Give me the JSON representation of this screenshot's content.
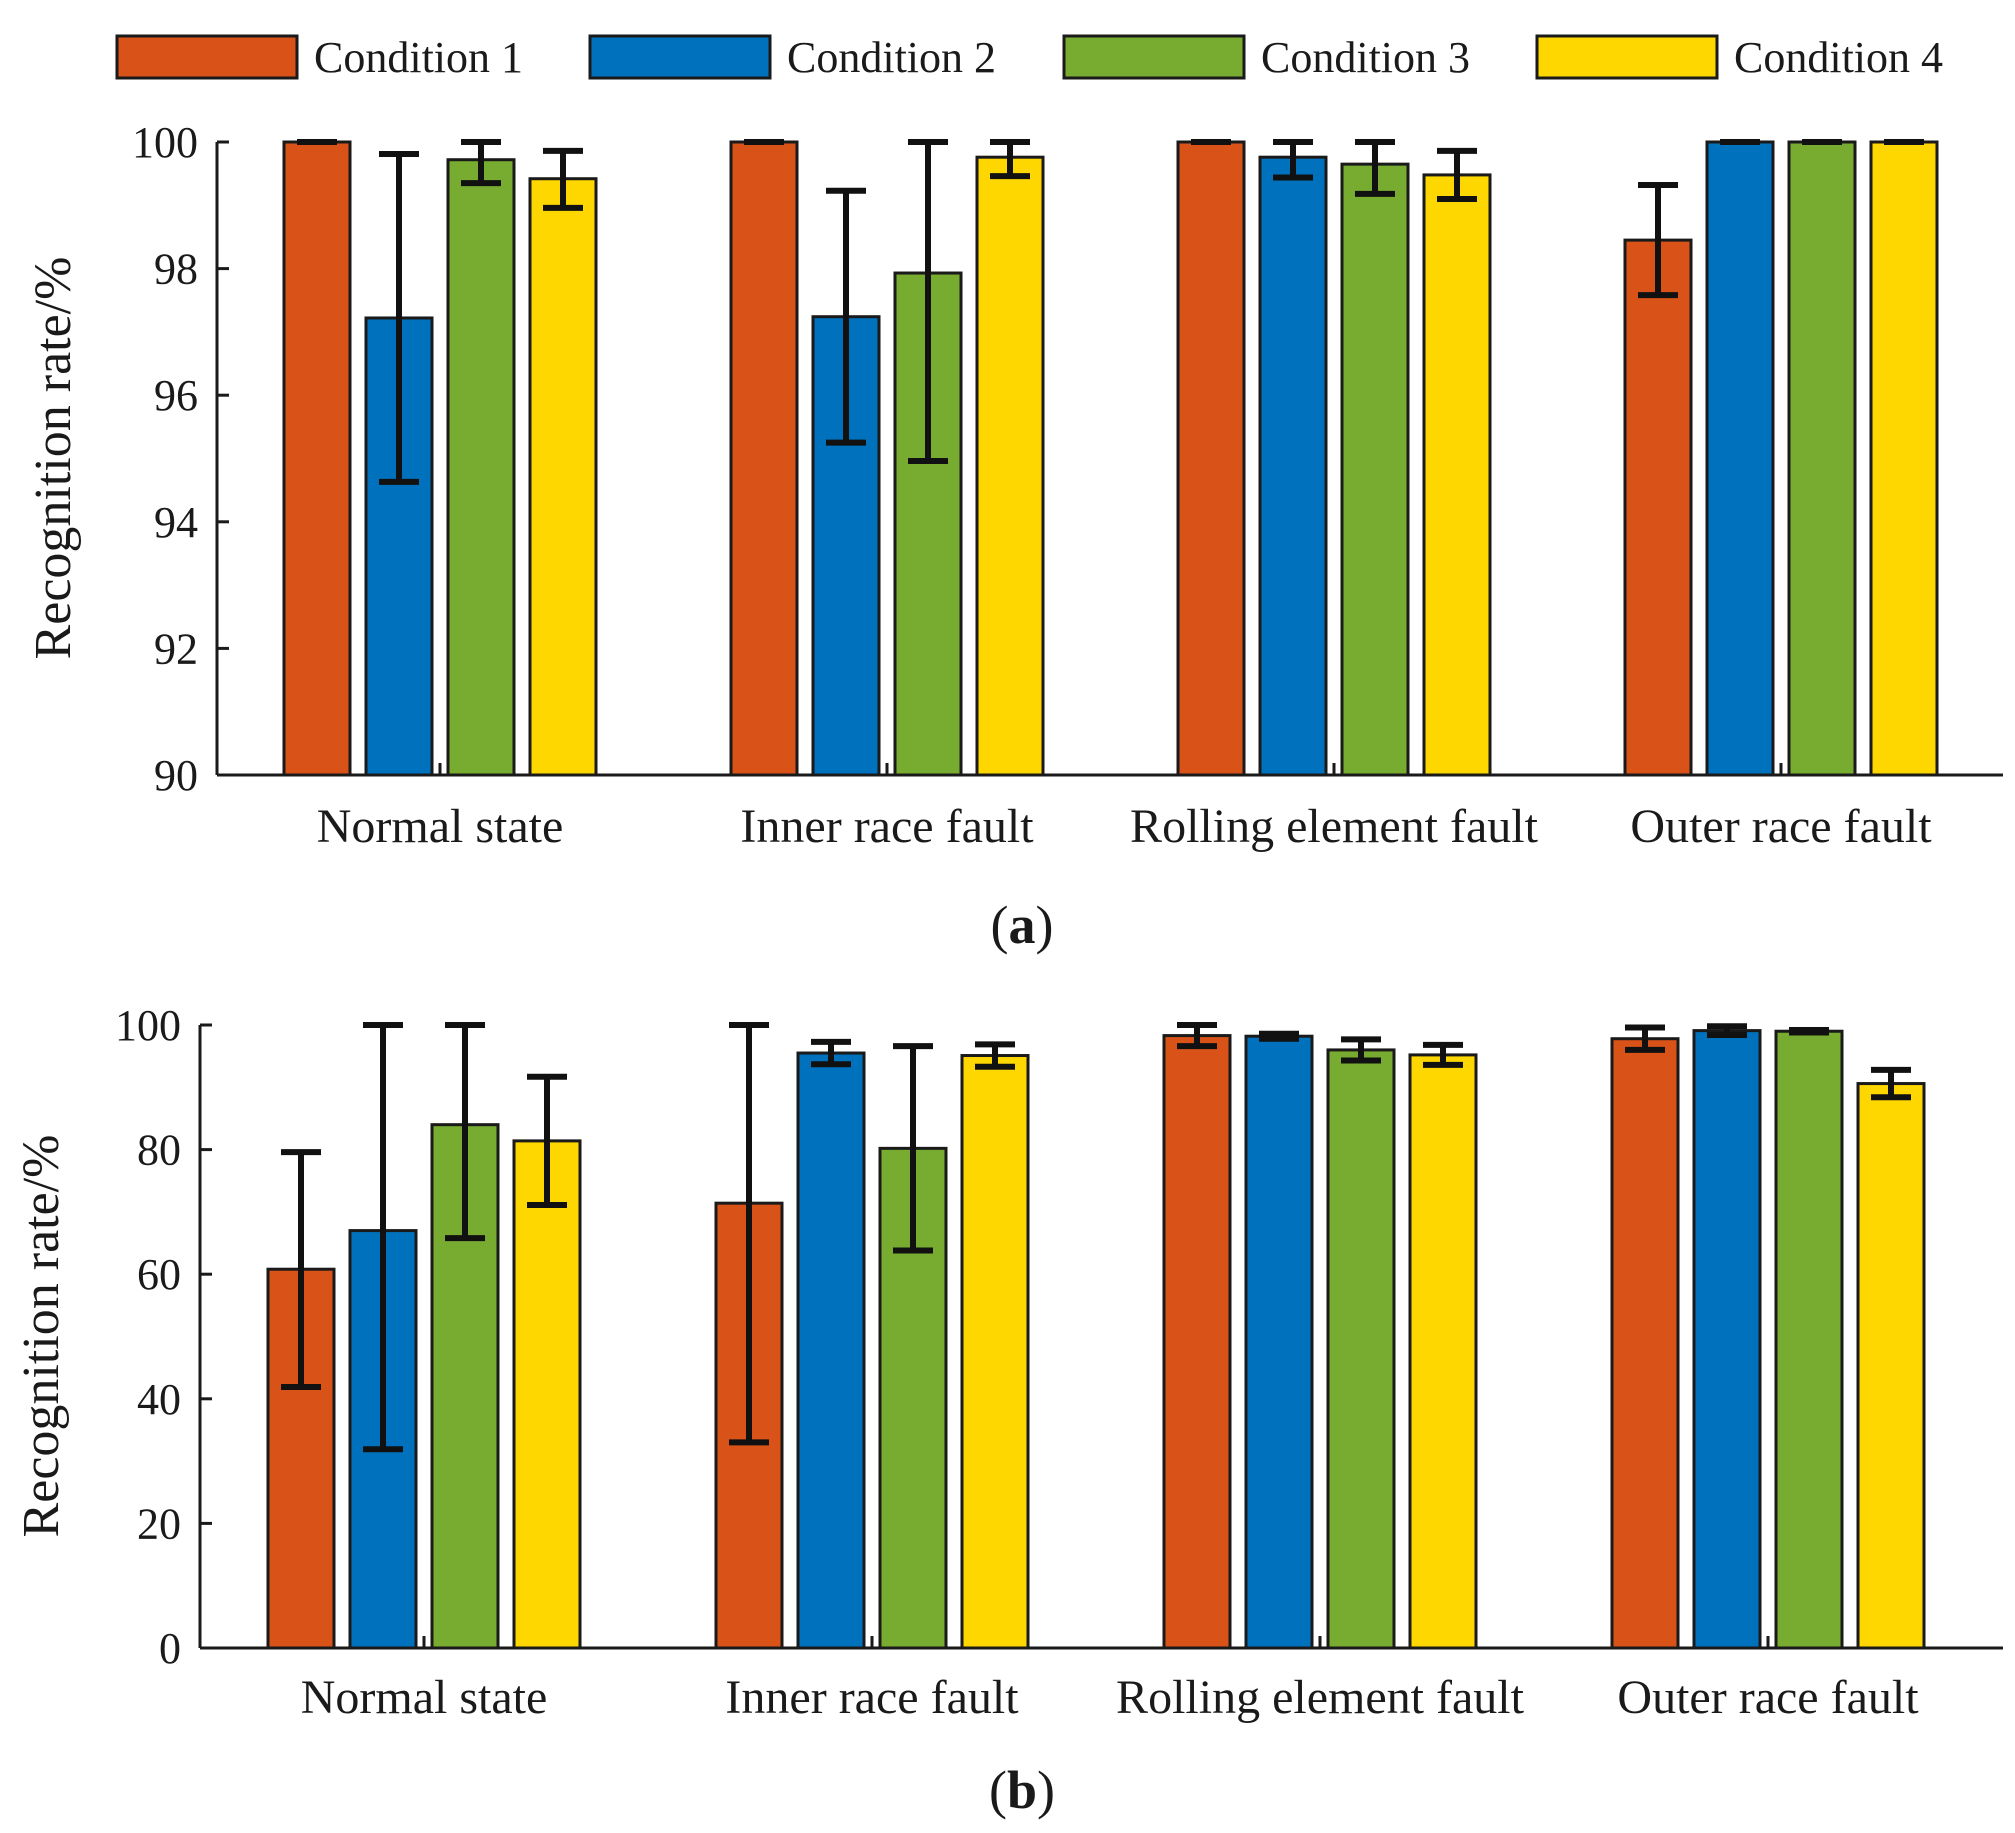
{
  "legend": [
    {
      "name": "Condition 1",
      "color": "#D95319"
    },
    {
      "name": "Condition 2",
      "color": "#0072BD"
    },
    {
      "name": "Condition 3",
      "color": "#77AC30"
    },
    {
      "name": "Condition 4",
      "color": "#FFD700"
    }
  ],
  "chart_data": [
    {
      "type": "bar",
      "panel_label": "(a)",
      "ylabel": "Recognition rate/%",
      "ylim": [
        90,
        100
      ],
      "yticks": [
        90,
        92,
        94,
        96,
        98,
        100
      ],
      "categories": [
        "Normal state",
        "Inner race fault",
        "Rolling element fault",
        "Outer race fault"
      ],
      "series": [
        {
          "name": "Condition 1",
          "values": [
            100,
            100,
            100,
            98.45
          ],
          "err_low": [
            100,
            100,
            100,
            97.58
          ],
          "err_high": [
            100,
            100,
            100,
            99.32
          ]
        },
        {
          "name": "Condition 2",
          "values": [
            97.22,
            97.24,
            99.76,
            100
          ],
          "err_low": [
            94.63,
            95.25,
            99.44,
            100
          ],
          "err_high": [
            99.81,
            99.23,
            100,
            100
          ]
        },
        {
          "name": "Condition 3",
          "values": [
            99.72,
            97.93,
            99.65,
            100
          ],
          "err_low": [
            99.35,
            94.96,
            99.18,
            100
          ],
          "err_high": [
            100,
            100,
            100,
            100
          ]
        },
        {
          "name": "Condition 4",
          "values": [
            99.42,
            99.76,
            99.48,
            100
          ],
          "err_low": [
            98.96,
            99.46,
            99.1,
            100
          ],
          "err_high": [
            99.86,
            100,
            99.86,
            100
          ]
        }
      ]
    },
    {
      "type": "bar",
      "panel_label": "(b)",
      "ylabel": "Recognition rate/%",
      "ylim": [
        0,
        100
      ],
      "yticks": [
        0,
        20,
        40,
        60,
        80,
        100
      ],
      "categories": [
        "Normal state",
        "Inner race fault",
        "Rolling element fault",
        "Outer race fault"
      ],
      "series": [
        {
          "name": "Condition 1",
          "values": [
            60.8,
            71.4,
            98.3,
            97.8
          ],
          "err_low": [
            41.9,
            33.0,
            96.6,
            96.0
          ],
          "err_high": [
            79.6,
            100,
            100,
            99.6
          ]
        },
        {
          "name": "Condition 2",
          "values": [
            67.0,
            95.5,
            98.2,
            99.1
          ],
          "err_low": [
            31.9,
            93.7,
            97.8,
            98.4
          ],
          "err_high": [
            100,
            97.3,
            98.6,
            99.8
          ]
        },
        {
          "name": "Condition 3",
          "values": [
            84.0,
            80.2,
            96.0,
            99.0
          ],
          "err_low": [
            65.8,
            63.8,
            94.3,
            98.8
          ],
          "err_high": [
            100,
            96.6,
            97.7,
            99.2
          ]
        },
        {
          "name": "Condition 4",
          "values": [
            81.4,
            95.1,
            95.2,
            90.6
          ],
          "err_low": [
            71.1,
            93.3,
            93.6,
            88.4
          ],
          "err_high": [
            91.7,
            96.9,
            96.8,
            92.8
          ]
        }
      ]
    }
  ]
}
